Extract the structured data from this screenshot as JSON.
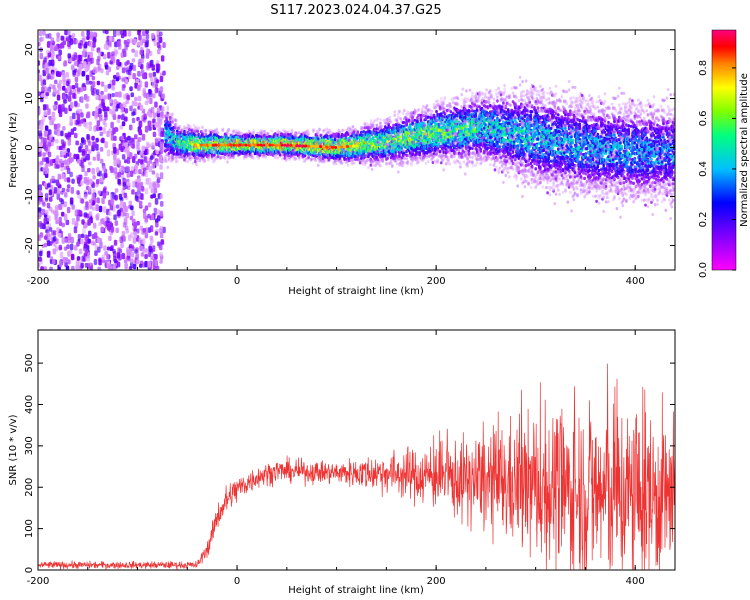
{
  "figure": {
    "title": "S117.2023.024.04.37.G25"
  },
  "chart_data": [
    {
      "type": "heatmap",
      "xlabel": "Height of straight line (km)",
      "ylabel": "Frequency (Hz)",
      "xlim": [
        -200,
        440
      ],
      "ylim": [
        -25,
        24
      ],
      "x_ticks": [
        -200,
        0,
        200,
        400
      ],
      "y_ticks": [
        -20,
        -10,
        0,
        10,
        20
      ],
      "grid": false,
      "colorbar": {
        "label": "Normalized spectral amplitude",
        "range": [
          0,
          0.95
        ],
        "ticks": [
          "0.0",
          "0.2",
          "0.4",
          "0.6",
          "0.8"
        ],
        "colors": [
          "#ff00ff",
          "#ff0000",
          "#ffff00",
          "#00ff00",
          "#00ffff",
          "#0000ff",
          "#ff00ff"
        ],
        "palette_note": "rainbow hue map from magenta(low) to magenta(high)"
      },
      "noise_region": {
        "x_range": [
          -200,
          -73
        ],
        "freq_range": [
          -25,
          24
        ],
        "typical_amplitude": 0.05
      },
      "ridge": [
        {
          "x": -70,
          "freq_center": 2.5,
          "half_width": 4,
          "peak": 0.45
        },
        {
          "x": -60,
          "freq_center": 1.0,
          "half_width": 2.5,
          "peak": 0.6
        },
        {
          "x": -40,
          "freq_center": 0.5,
          "half_width": 2,
          "peak": 0.85
        },
        {
          "x": 0,
          "freq_center": 0.5,
          "half_width": 1.5,
          "peak": 0.9
        },
        {
          "x": 50,
          "freq_center": 0.5,
          "half_width": 1.5,
          "peak": 0.95
        },
        {
          "x": 100,
          "freq_center": 0,
          "half_width": 2,
          "peak": 0.9
        },
        {
          "x": 150,
          "freq_center": 1,
          "half_width": 3,
          "peak": 0.7
        },
        {
          "x": 200,
          "freq_center": 3,
          "half_width": 4,
          "peak": 0.7
        },
        {
          "x": 250,
          "freq_center": 4,
          "half_width": 5,
          "peak": 0.55
        },
        {
          "x": 300,
          "freq_center": 2,
          "half_width": 7,
          "peak": 0.5
        },
        {
          "x": 350,
          "freq_center": 0,
          "half_width": 7,
          "peak": 0.45
        },
        {
          "x": 400,
          "freq_center": -1,
          "half_width": 7,
          "peak": 0.45
        },
        {
          "x": 440,
          "freq_center": -1,
          "half_width": 7,
          "peak": 0.4
        }
      ]
    },
    {
      "type": "line",
      "xlabel": "Height of straight line (km)",
      "ylabel": "SNR (10 * v/v)",
      "xlim": [
        -200,
        440
      ],
      "ylim": [
        0,
        580
      ],
      "x_ticks": [
        -200,
        0,
        200,
        400
      ],
      "y_ticks": [
        0,
        100,
        200,
        300,
        400,
        500
      ],
      "grid": false,
      "series": [
        {
          "color": "#ee3333",
          "envelope": [
            {
              "x": -200,
              "mean": 12,
              "amp": 8
            },
            {
              "x": -40,
              "mean": 12,
              "amp": 8
            },
            {
              "x": -28,
              "mean": 60,
              "amp": 20
            },
            {
              "x": -20,
              "mean": 130,
              "amp": 30
            },
            {
              "x": -10,
              "mean": 170,
              "amp": 35
            },
            {
              "x": 0,
              "mean": 195,
              "amp": 30
            },
            {
              "x": 20,
              "mean": 225,
              "amp": 25
            },
            {
              "x": 40,
              "mean": 240,
              "amp": 25
            },
            {
              "x": 100,
              "mean": 235,
              "amp": 25
            },
            {
              "x": 150,
              "mean": 235,
              "amp": 45
            },
            {
              "x": 200,
              "mean": 225,
              "amp": 70
            },
            {
              "x": 250,
              "mean": 210,
              "amp": 110
            },
            {
              "x": 300,
              "mean": 200,
              "amp": 160
            },
            {
              "x": 350,
              "mean": 185,
              "amp": 200
            },
            {
              "x": 400,
              "mean": 180,
              "amp": 200
            },
            {
              "x": 440,
              "mean": 175,
              "amp": 180
            }
          ]
        }
      ]
    }
  ]
}
